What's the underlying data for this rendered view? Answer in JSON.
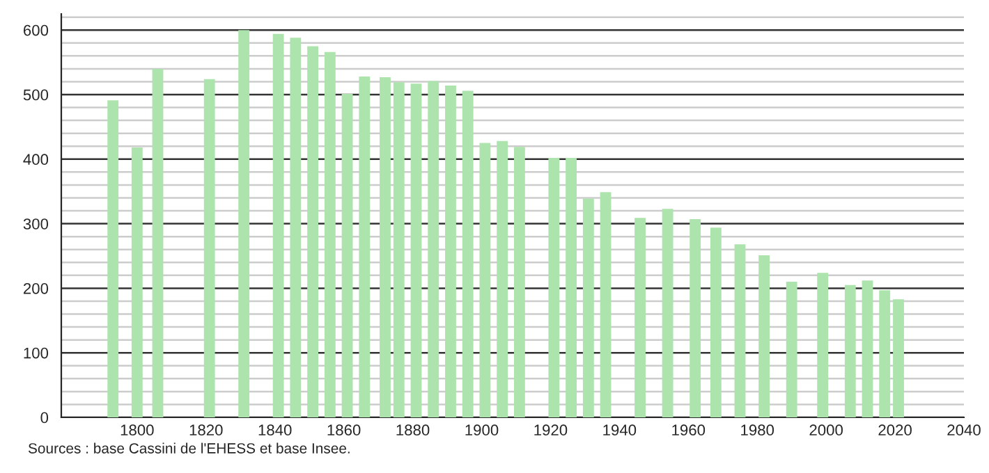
{
  "chart_data": {
    "type": "bar",
    "color": "#ade3ad",
    "x": [
      1793,
      1800,
      1806,
      1821,
      1831,
      1841,
      1846,
      1851,
      1856,
      1861,
      1866,
      1872,
      1876,
      1881,
      1886,
      1891,
      1896,
      1901,
      1906,
      1911,
      1921,
      1926,
      1931,
      1936,
      1946,
      1954,
      1962,
      1968,
      1975,
      1982,
      1990,
      1999,
      2007,
      2012,
      2017,
      2021
    ],
    "values": [
      491,
      418,
      540,
      524,
      600,
      594,
      588,
      575,
      566,
      501,
      528,
      527,
      519,
      517,
      521,
      514,
      506,
      425,
      428,
      419,
      402,
      402,
      339,
      349,
      309,
      323,
      307,
      294,
      268,
      251,
      210,
      224,
      205,
      212,
      197,
      183
    ],
    "xlim": [
      1778,
      2040
    ],
    "xticks": [
      1800,
      1820,
      1840,
      1860,
      1880,
      1900,
      1920,
      1940,
      1960,
      1980,
      2000,
      2020,
      2040
    ],
    "ylim": [
      0,
      625
    ],
    "yticks": [
      0,
      {
        "value": 20,
        "label": null
      },
      {
        "value": 40,
        "label": null
      },
      {
        "value": 60,
        "label": null
      },
      {
        "value": 80,
        "label": null
      },
      100,
      {
        "value": 120,
        "label": null
      },
      {
        "value": 140,
        "label": null
      },
      {
        "value": 160,
        "label": null
      },
      {
        "value": 180,
        "label": null
      },
      200,
      {
        "value": 220,
        "label": null
      },
      {
        "value": 240,
        "label": null
      },
      {
        "value": 260,
        "label": null
      },
      {
        "value": 280,
        "label": null
      },
      300,
      {
        "value": 320,
        "label": null
      },
      {
        "value": 340,
        "label": null
      },
      {
        "value": 360,
        "label": null
      },
      {
        "value": 380,
        "label": null
      },
      400,
      {
        "value": 420,
        "label": null
      },
      {
        "value": 440,
        "label": null
      },
      {
        "value": 460,
        "label": null
      },
      {
        "value": 480,
        "label": null
      },
      500,
      {
        "value": 520,
        "label": null
      },
      {
        "value": 540,
        "label": null
      },
      {
        "value": 560,
        "label": null
      },
      {
        "value": 580,
        "label": null
      },
      600,
      {
        "value": 620,
        "label": null
      }
    ],
    "grid": "y",
    "annotations": [
      "Sources : base Cassini de l'EHESS et base Insee."
    ]
  }
}
